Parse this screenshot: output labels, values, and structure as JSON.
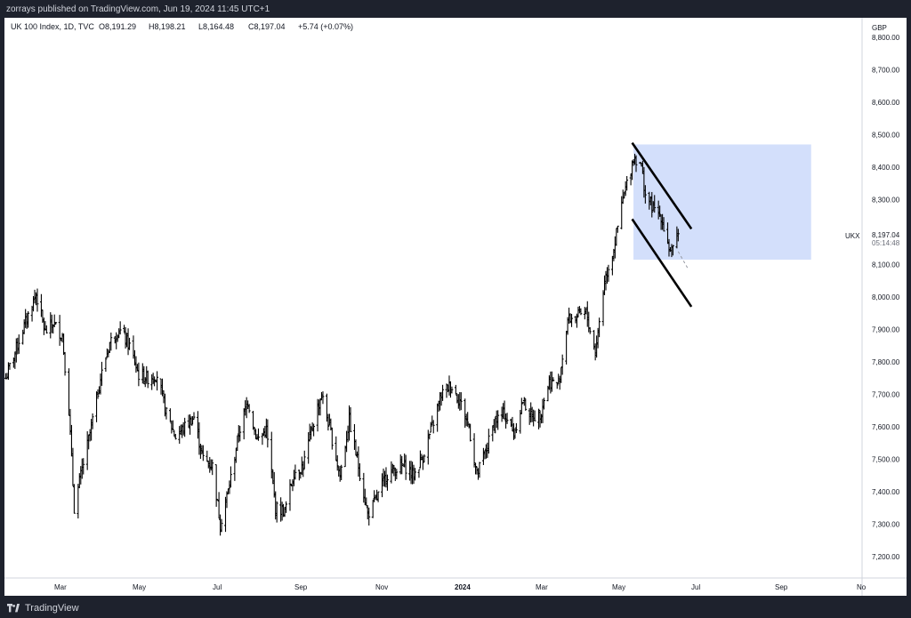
{
  "header": {
    "publish_text": "zorrays published on TradingView.com, Jun 19, 2024 11:45 UTC+1"
  },
  "legend": {
    "symbol": "UK 100 Index, 1D, TVC",
    "open": "O8,191.29",
    "high": "H8,198.21",
    "low": "L8,164.48",
    "close": "C8,197.04",
    "change": "+5.74 (+0.07%)"
  },
  "price_axis": {
    "currency": "GBP",
    "ticks": [
      "8,800.00",
      "8,700.00",
      "8,600.00",
      "8,500.00",
      "8,400.00",
      "8,300.00",
      "8,100.00",
      "8,000.00",
      "7,900.00",
      "7,800.00",
      "7,700.00",
      "7,600.00",
      "7,500.00",
      "7,400.00",
      "7,300.00",
      "7,200.00"
    ],
    "last_price": "8,197.04",
    "countdown": "05:14:48",
    "symbol_tag": "UKX"
  },
  "time_axis": {
    "labels": [
      "Mar",
      "May",
      "Jul",
      "Sep",
      "Nov",
      "2024",
      "Mar",
      "May",
      "Jul",
      "Sep",
      "No"
    ]
  },
  "footer": {
    "brand": "TradingView"
  },
  "colors": {
    "background": "#1e222d",
    "bar": "#000000",
    "zone": "#d3dffb",
    "trend_line": "#000000"
  },
  "chart_data": {
    "type": "ohlc",
    "instrument": "UK 100 Index",
    "interval": "1D",
    "currency": "GBP",
    "ylim": [
      7150,
      8880
    ],
    "xlim": [
      "2023-01-23",
      "2024-11-02"
    ],
    "anchors": [
      [
        "2023-01-24",
        7750
      ],
      [
        "2023-02-06",
        7900
      ],
      [
        "2023-02-16",
        8010
      ],
      [
        "2023-02-23",
        7890
      ],
      [
        "2023-03-01",
        7920
      ],
      [
        "2023-03-08",
        7880
      ],
      [
        "2023-03-13",
        7650
      ],
      [
        "2023-03-17",
        7350
      ],
      [
        "2023-03-22",
        7450
      ],
      [
        "2023-03-29",
        7580
      ],
      [
        "2023-04-06",
        7750
      ],
      [
        "2023-04-13",
        7860
      ],
      [
        "2023-04-20",
        7900
      ],
      [
        "2023-04-28",
        7850
      ],
      [
        "2023-05-05",
        7760
      ],
      [
        "2023-05-12",
        7750
      ],
      [
        "2023-05-19",
        7760
      ],
      [
        "2023-05-26",
        7640
      ],
      [
        "2023-06-02",
        7570
      ],
      [
        "2023-06-09",
        7600
      ],
      [
        "2023-06-16",
        7630
      ],
      [
        "2023-06-23",
        7500
      ],
      [
        "2023-06-30",
        7480
      ],
      [
        "2023-07-06",
        7300
      ],
      [
        "2023-07-13",
        7420
      ],
      [
        "2023-07-20",
        7580
      ],
      [
        "2023-07-27",
        7680
      ],
      [
        "2023-08-03",
        7560
      ],
      [
        "2023-08-10",
        7590
      ],
      [
        "2023-08-17",
        7350
      ],
      [
        "2023-08-24",
        7340
      ],
      [
        "2023-08-31",
        7460
      ],
      [
        "2023-09-07",
        7480
      ],
      [
        "2023-09-14",
        7600
      ],
      [
        "2023-09-21",
        7700
      ],
      [
        "2023-09-28",
        7580
      ],
      [
        "2023-10-05",
        7450
      ],
      [
        "2023-10-12",
        7620
      ],
      [
        "2023-10-19",
        7480
      ],
      [
        "2023-10-26",
        7330
      ],
      [
        "2023-11-02",
        7380
      ],
      [
        "2023-11-09",
        7450
      ],
      [
        "2023-11-16",
        7470
      ],
      [
        "2023-11-23",
        7480
      ],
      [
        "2023-11-30",
        7450
      ],
      [
        "2023-12-07",
        7510
      ],
      [
        "2023-12-14",
        7600
      ],
      [
        "2023-12-21",
        7700
      ],
      [
        "2023-12-28",
        7730
      ],
      [
        "2024-01-04",
        7680
      ],
      [
        "2024-01-11",
        7600
      ],
      [
        "2024-01-17",
        7450
      ],
      [
        "2024-01-24",
        7530
      ],
      [
        "2024-01-31",
        7620
      ],
      [
        "2024-02-07",
        7640
      ],
      [
        "2024-02-14",
        7580
      ],
      [
        "2024-02-21",
        7680
      ],
      [
        "2024-02-28",
        7630
      ],
      [
        "2024-03-05",
        7640
      ],
      [
        "2024-03-12",
        7740
      ],
      [
        "2024-03-19",
        7730
      ],
      [
        "2024-03-26",
        7930
      ],
      [
        "2024-04-02",
        7940
      ],
      [
        "2024-04-09",
        7950
      ],
      [
        "2024-04-16",
        7830
      ],
      [
        "2024-04-23",
        8050
      ],
      [
        "2024-04-30",
        8150
      ],
      [
        "2024-05-07",
        8300
      ],
      [
        "2024-05-15",
        8430
      ],
      [
        "2024-05-20",
        8420
      ],
      [
        "2024-05-24",
        8320
      ],
      [
        "2024-05-30",
        8270
      ],
      [
        "2024-06-05",
        8250
      ],
      [
        "2024-06-11",
        8150
      ],
      [
        "2024-06-14",
        8140
      ],
      [
        "2024-06-18",
        8191
      ]
    ],
    "box": {
      "from": "2024-05-15",
      "to": "2024-09-27",
      "top": 8470,
      "bottom": 8115
    },
    "trendlines": [
      {
        "from": [
          "2024-05-14",
          8475
        ],
        "to": [
          "2024-06-28",
          8210
        ]
      },
      {
        "from": [
          "2024-05-14",
          8240
        ],
        "to": [
          "2024-06-28",
          7970
        ]
      },
      {
        "from": [
          "2024-06-18",
          8140
        ],
        "to": [
          "2024-06-25",
          8090
        ],
        "dashed": true
      }
    ]
  }
}
